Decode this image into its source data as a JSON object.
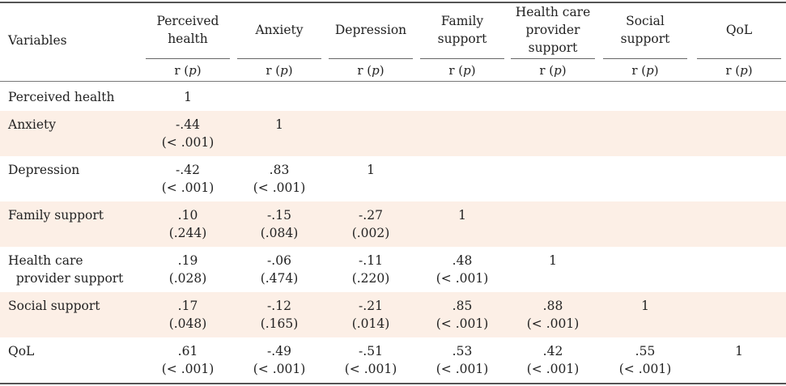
{
  "header": {
    "variables": "Variables",
    "columns": [
      {
        "label": [
          "Perceived",
          "health"
        ]
      },
      {
        "label": [
          "Anxiety"
        ]
      },
      {
        "label": [
          "Depression"
        ]
      },
      {
        "label": [
          "Family",
          "support"
        ]
      },
      {
        "label": [
          "Health care",
          "provider",
          "support"
        ]
      },
      {
        "label": [
          "Social",
          "support"
        ]
      },
      {
        "label": [
          "QoL"
        ]
      }
    ],
    "sub_r": "r (",
    "sub_p": "p",
    "sub_close": ")"
  },
  "rows": [
    {
      "label": [
        "Perceived health"
      ],
      "cells": [
        [
          "1"
        ],
        [],
        [],
        [],
        [],
        [],
        []
      ]
    },
    {
      "label": [
        "Anxiety"
      ],
      "cells": [
        [
          "-.44",
          "(< .001)"
        ],
        [
          "1"
        ],
        [],
        [],
        [],
        [],
        []
      ]
    },
    {
      "label": [
        "Depression"
      ],
      "cells": [
        [
          "-.42",
          "(< .001)"
        ],
        [
          ".83",
          "(< .001)"
        ],
        [
          "1"
        ],
        [],
        [],
        [],
        []
      ]
    },
    {
      "label": [
        "Family support"
      ],
      "cells": [
        [
          ".10",
          "(.244)"
        ],
        [
          "-.15",
          "(.084)"
        ],
        [
          "-.27",
          "(.002)"
        ],
        [
          "1"
        ],
        [],
        [],
        []
      ]
    },
    {
      "label": [
        "Health care",
        "  provider support"
      ],
      "cells": [
        [
          ".19",
          "(.028)"
        ],
        [
          "-.06",
          "(.474)"
        ],
        [
          "-.11",
          "(.220)"
        ],
        [
          ".48",
          "(< .001)"
        ],
        [
          "1"
        ],
        [],
        []
      ]
    },
    {
      "label": [
        "Social support"
      ],
      "cells": [
        [
          ".17",
          "(.048)"
        ],
        [
          "-.12",
          "(.165)"
        ],
        [
          "-.21",
          "(.014)"
        ],
        [
          ".85",
          "(< .001)"
        ],
        [
          ".88",
          "(< .001)"
        ],
        [
          "1"
        ],
        []
      ]
    },
    {
      "label": [
        "QoL"
      ],
      "cells": [
        [
          ".61",
          "(< .001)"
        ],
        [
          "-.49",
          "(< .001)"
        ],
        [
          "-.51",
          "(< .001)"
        ],
        [
          ".53",
          "(< .001)"
        ],
        [
          ".42",
          "(< .001)"
        ],
        [
          ".55",
          "(< .001)"
        ],
        [
          "1"
        ]
      ]
    }
  ],
  "colors": {
    "shaded_row": "#fcefe6",
    "rule": "#555555"
  }
}
